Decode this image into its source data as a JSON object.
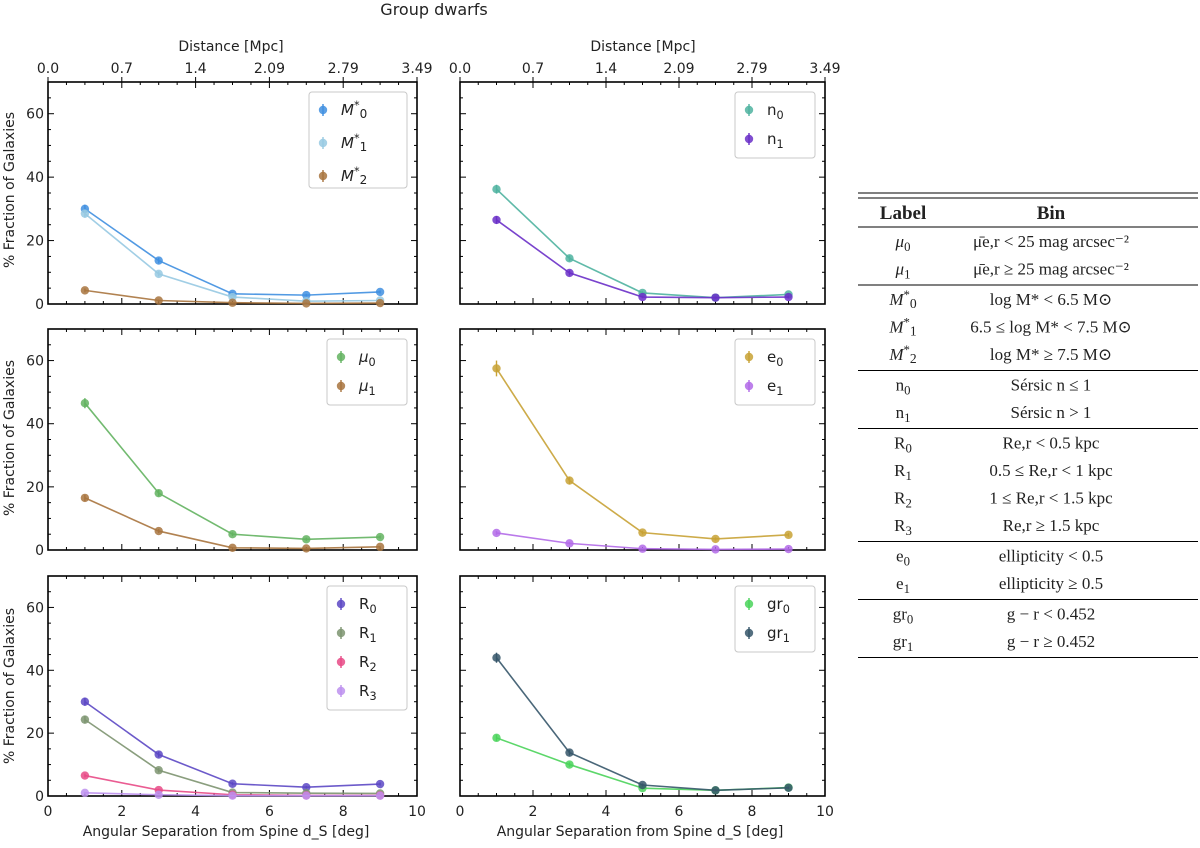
{
  "figure": {
    "title": "Group dwarfs",
    "top_axis_label": "Distance [Mpc]",
    "top_tick_labels": [
      "0.0",
      "0.7",
      "1.4",
      "2.09",
      "2.79",
      "3.49"
    ],
    "y_axis_label": "% Fraction of Galaxies",
    "x_axis_label": "Angular Separation from Spine d_S [deg]",
    "x_tick_labels": [
      "0",
      "2",
      "4",
      "6",
      "8",
      "10"
    ],
    "y_tick_labels": [
      "0",
      "20",
      "40",
      "60"
    ]
  },
  "chart_data": [
    {
      "type": "line",
      "panel": "row1-left",
      "x": [
        1,
        3,
        5,
        7,
        9
      ],
      "xlim": [
        0,
        10
      ],
      "ylim": [
        0,
        70
      ],
      "legend_position": "upper-right",
      "series": [
        {
          "name": "M*0",
          "color": "#3f8fe0",
          "values": [
            30,
            13.7,
            3.2,
            2.8,
            3.8
          ],
          "errors": [
            1.3,
            0.9,
            0.5,
            0.4,
            0.5
          ]
        },
        {
          "name": "M*1",
          "color": "#97c9e2",
          "values": [
            28.5,
            9.5,
            2.2,
            0.9,
            1.1
          ],
          "errors": [
            1.3,
            0.8,
            0.4,
            0.3,
            0.3
          ]
        },
        {
          "name": "M*2",
          "color": "#a8743e",
          "values": [
            4.3,
            1.1,
            0.4,
            0.2,
            0.3
          ],
          "errors": [
            0.6,
            0.3,
            0.2,
            0.1,
            0.1
          ]
        }
      ]
    },
    {
      "type": "line",
      "panel": "row1-right",
      "x": [
        1,
        3,
        5,
        7,
        9
      ],
      "xlim": [
        0,
        10
      ],
      "ylim": [
        0,
        70
      ],
      "legend_position": "upper-right",
      "series": [
        {
          "name": "n0",
          "color": "#4fb3a0",
          "values": [
            36.2,
            14.4,
            3.5,
            2.0,
            3.0
          ],
          "errors": [
            1.4,
            0.9,
            0.5,
            0.4,
            0.5
          ]
        },
        {
          "name": "n1",
          "color": "#6a2fc8",
          "values": [
            26.5,
            9.8,
            2.2,
            2.0,
            2.2
          ],
          "errors": [
            1.2,
            0.8,
            0.4,
            0.4,
            0.4
          ]
        }
      ]
    },
    {
      "type": "line",
      "panel": "row2-left",
      "x": [
        1,
        3,
        5,
        7,
        9
      ],
      "xlim": [
        0,
        10
      ],
      "ylim": [
        0,
        70
      ],
      "legend_position": "upper-right",
      "series": [
        {
          "name": "μ0",
          "color": "#63b360",
          "values": [
            46.5,
            18.0,
            5.0,
            3.4,
            4.1
          ],
          "errors": [
            1.6,
            1.0,
            0.6,
            0.5,
            0.5
          ]
        },
        {
          "name": "μ1",
          "color": "#a8743e",
          "values": [
            16.5,
            6.0,
            0.7,
            0.5,
            1.0
          ],
          "errors": [
            1.0,
            0.6,
            0.2,
            0.2,
            0.2
          ]
        }
      ]
    },
    {
      "type": "line",
      "panel": "row2-right",
      "x": [
        1,
        3,
        5,
        7,
        9
      ],
      "xlim": [
        0,
        10
      ],
      "ylim": [
        0,
        70
      ],
      "legend_position": "upper-right",
      "series": [
        {
          "name": "e0",
          "color": "#c8a235",
          "values": [
            57.5,
            22.0,
            5.5,
            3.5,
            4.8
          ],
          "errors": [
            2.5,
            1.2,
            0.6,
            0.5,
            0.6
          ]
        },
        {
          "name": "e1",
          "color": "#b26ae8",
          "values": [
            5.4,
            2.1,
            0.4,
            0.2,
            0.3
          ],
          "errors": [
            0.6,
            0.4,
            0.2,
            0.1,
            0.1
          ]
        }
      ]
    },
    {
      "type": "line",
      "panel": "row3-left",
      "x": [
        1,
        3,
        5,
        7,
        9
      ],
      "xlim": [
        0,
        10
      ],
      "ylim": [
        0,
        70
      ],
      "legend_position": "upper-right",
      "series": [
        {
          "name": "R0",
          "color": "#5c48c4",
          "values": [
            30.0,
            13.2,
            3.9,
            2.8,
            3.8
          ],
          "errors": [
            1.3,
            0.9,
            0.5,
            0.4,
            0.5
          ]
        },
        {
          "name": "R1",
          "color": "#7d9470",
          "values": [
            24.3,
            8.2,
            1.1,
            0.9,
            0.8
          ],
          "errors": [
            1.2,
            0.7,
            0.3,
            0.3,
            0.3
          ]
        },
        {
          "name": "R2",
          "color": "#e84a86",
          "values": [
            6.5,
            1.9,
            0.4,
            0.2,
            0.2
          ],
          "errors": [
            0.6,
            0.4,
            0.2,
            0.1,
            0.1
          ]
        },
        {
          "name": "R3",
          "color": "#bd90ee",
          "values": [
            1.0,
            0.4,
            0.1,
            0.1,
            0.1
          ],
          "errors": [
            0.3,
            0.2,
            0.1,
            0.1,
            0.1
          ]
        }
      ]
    },
    {
      "type": "line",
      "panel": "row3-right",
      "x": [
        1,
        3,
        5,
        7,
        9
      ],
      "xlim": [
        0,
        10
      ],
      "ylim": [
        0,
        70
      ],
      "legend_position": "upper-right",
      "series": [
        {
          "name": "gr0",
          "color": "#4ad35a",
          "values": [
            18.5,
            10.0,
            2.5,
            1.8,
            2.7
          ],
          "errors": [
            1.0,
            0.7,
            0.4,
            0.3,
            0.4
          ]
        },
        {
          "name": "gr1",
          "color": "#36566a",
          "values": [
            44.0,
            13.8,
            3.5,
            1.8,
            2.6
          ],
          "errors": [
            1.6,
            0.9,
            0.5,
            0.3,
            0.4
          ]
        }
      ]
    }
  ],
  "table": {
    "header": {
      "label": "Label",
      "bin": "Bin"
    },
    "groups": [
      [
        {
          "label": "μ0",
          "bin": "μ̄e,r < 25 mag arcsec⁻²"
        },
        {
          "label": "μ1",
          "bin": "μ̄e,r ≥ 25 mag arcsec⁻²"
        }
      ],
      [
        {
          "label": "M*0",
          "bin": "log  M*  < 6.5 M⊙"
        },
        {
          "label": "M*1",
          "bin": "6.5 ≤ log  M*  < 7.5 M⊙"
        },
        {
          "label": "M*2",
          "bin": "log  M* ≥ 7.5 M⊙"
        }
      ],
      [
        {
          "label": "n0",
          "bin": "Sérsic n ≤ 1"
        },
        {
          "label": "n1",
          "bin": "Sérsic n > 1"
        }
      ],
      [
        {
          "label": "R0",
          "bin": "Re,r  < 0.5 kpc"
        },
        {
          "label": "R1",
          "bin": "0.5 ≤ Re,r  < 1 kpc"
        },
        {
          "label": "R2",
          "bin": "1 ≤ Re,r  < 1.5 kpc"
        },
        {
          "label": "R3",
          "bin": "Re,r ≥ 1.5 kpc"
        }
      ],
      [
        {
          "label": "e0",
          "bin": "ellipticity < 0.5"
        },
        {
          "label": "e1",
          "bin": "ellipticity ≥ 0.5"
        }
      ],
      [
        {
          "label": "gr0",
          "bin": "g − r < 0.452"
        },
        {
          "label": "gr1",
          "bin": "g − r ≥ 0.452"
        }
      ]
    ]
  }
}
